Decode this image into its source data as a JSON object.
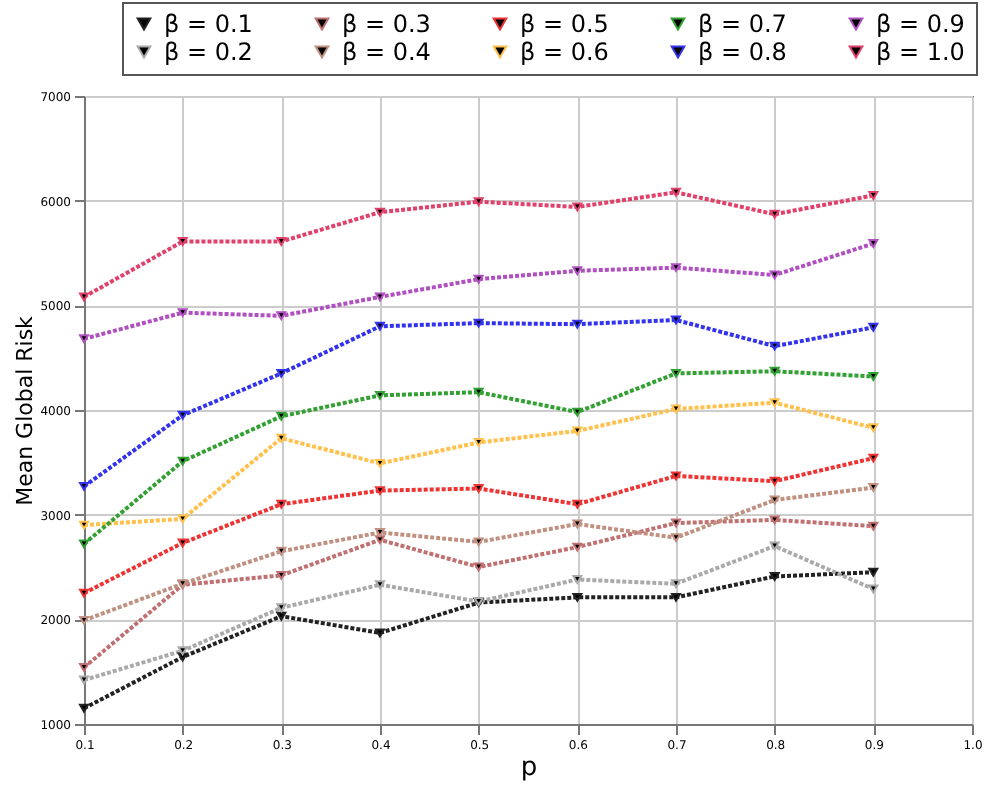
{
  "chart_data": {
    "type": "line",
    "xlabel": "p",
    "ylabel": "Mean Global Risk",
    "x": [
      0.1,
      0.2,
      0.3,
      0.4,
      0.5,
      0.6,
      0.7,
      0.8,
      0.9
    ],
    "xlim": [
      0.1,
      1.0
    ],
    "xticks": [
      0.1,
      0.2,
      0.3,
      0.4,
      0.5,
      0.6,
      0.7,
      0.8,
      0.9,
      {
        "value": 1,
        "label": "1.0"
      }
    ],
    "ylim": [
      1000,
      7000
    ],
    "yticks": [
      1000,
      2000,
      3000,
      4000,
      5000,
      6000,
      7000
    ],
    "grid": true,
    "legend": "top",
    "marker": "triangle",
    "line_style": "dotted",
    "series": [
      {
        "name": "β = 0.1",
        "color": "#222222",
        "values": [
          1150,
          1640,
          2030,
          1870,
          2160,
          2210,
          2210,
          2410,
          2450
        ]
      },
      {
        "name": "β = 0.2",
        "color": "#aaaaaa",
        "values": [
          1420,
          1700,
          2110,
          2330,
          2170,
          2380,
          2340,
          2700,
          2290
        ]
      },
      {
        "name": "β = 0.3",
        "color": "#c07070",
        "values": [
          1540,
          2330,
          2420,
          2760,
          2500,
          2690,
          2920,
          2950,
          2890
        ]
      },
      {
        "name": "β = 0.4",
        "color": "#c09080",
        "values": [
          1990,
          2340,
          2650,
          2830,
          2740,
          2910,
          2780,
          3140,
          3260
        ]
      },
      {
        "name": "β = 0.5",
        "color": "#ee3333",
        "values": [
          2250,
          2730,
          3100,
          3230,
          3250,
          3100,
          3370,
          3320,
          3540
        ]
      },
      {
        "name": "β = 0.6",
        "color": "#ffc04c",
        "values": [
          2900,
          2960,
          3730,
          3490,
          3690,
          3800,
          4010,
          4070,
          3830
        ]
      },
      {
        "name": "β = 0.7",
        "color": "#33a033",
        "values": [
          2720,
          3510,
          3940,
          4140,
          4170,
          3980,
          4350,
          4370,
          4320
        ]
      },
      {
        "name": "β = 0.8",
        "color": "#3333ee",
        "values": [
          3270,
          3950,
          4350,
          4800,
          4830,
          4820,
          4860,
          4610,
          4790
        ]
      },
      {
        "name": "β = 0.9",
        "color": "#b050c0",
        "values": [
          4680,
          4930,
          4900,
          5080,
          5250,
          5330,
          5360,
          5290,
          5590
        ]
      },
      {
        "name": "β = 1.0",
        "color": "#e0406a",
        "values": [
          5080,
          5610,
          5610,
          5890,
          5990,
          5940,
          6080,
          5870,
          6050
        ]
      }
    ]
  }
}
